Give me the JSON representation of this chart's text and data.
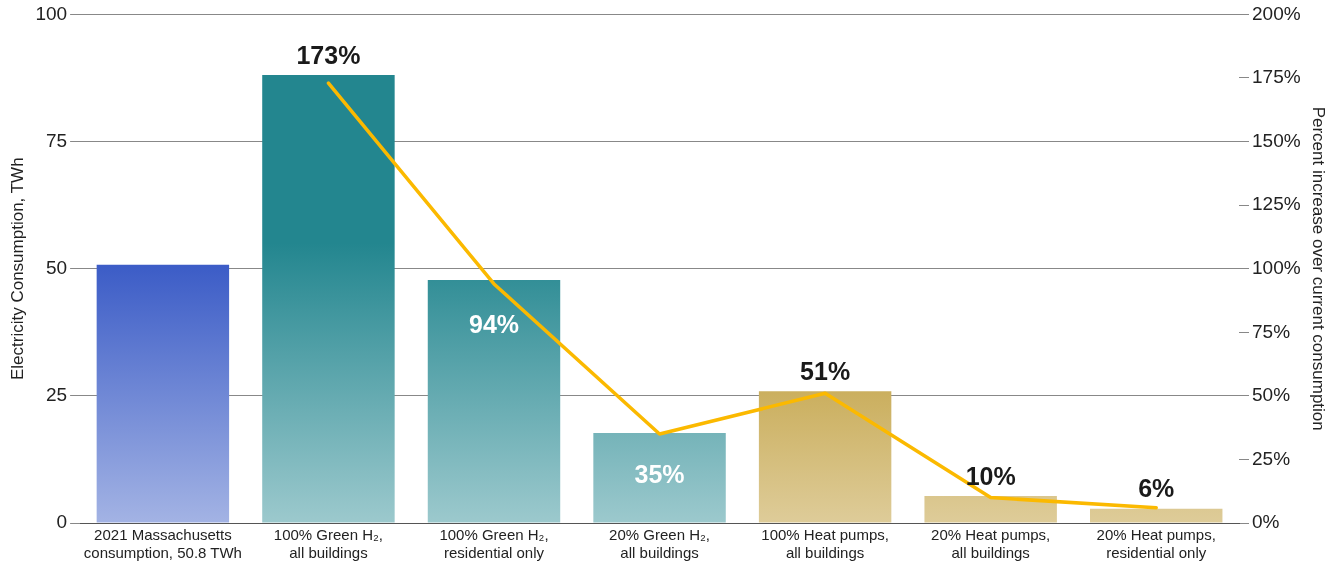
{
  "chart_data": {
    "type": "bar",
    "ylabel": "Electricity Consumption, TWh",
    "y2label": "Percent increase over current consumption",
    "categories": [
      "2021 Massachusetts consumption, 50.8 TWh",
      "100% Green H₂, all buildings",
      "100% Green H₂, residential only",
      "20% Green H₂, all buildings",
      "100% Heat pumps, all buildings",
      "20% Heat pumps, all buildings",
      "20% Heat pumps, residential only"
    ],
    "series": [
      {
        "colors": [
          "#3355c4",
          "#23868f",
          "#23868f",
          "#23868f",
          "#b58e1c",
          "#b58e1c",
          "#b58e1c"
        ],
        "values": [
          50.8,
          88.1,
          47.8,
          17.7,
          25.9,
          5.3,
          2.8
        ]
      },
      {
        "type": "line",
        "axis": "y2",
        "color": "#fbb900",
        "values": [
          null,
          173,
          94,
          35,
          51,
          10,
          6
        ],
        "value_labels": [
          null,
          "173%",
          "94%",
          "35%",
          "51%",
          "10%",
          "6%"
        ]
      }
    ],
    "ylim": [
      0,
      100
    ],
    "yticks": [
      0,
      25,
      50,
      75,
      100
    ],
    "y2lim": [
      0,
      200
    ],
    "y2ticks": [
      {
        "value": 0,
        "label": "0%"
      },
      {
        "value": 25,
        "label": "25%"
      },
      {
        "value": 50,
        "label": "50%"
      },
      {
        "value": 75,
        "label": "75%"
      },
      {
        "value": 100,
        "label": "100%"
      },
      {
        "value": 125,
        "label": "125%"
      },
      {
        "value": 150,
        "label": "150%"
      },
      {
        "value": 175,
        "label": "175%"
      },
      {
        "value": 200,
        "label": "200%"
      }
    ],
    "grid": "y",
    "legend": false,
    "marker": "none",
    "line_style": "solid"
  }
}
